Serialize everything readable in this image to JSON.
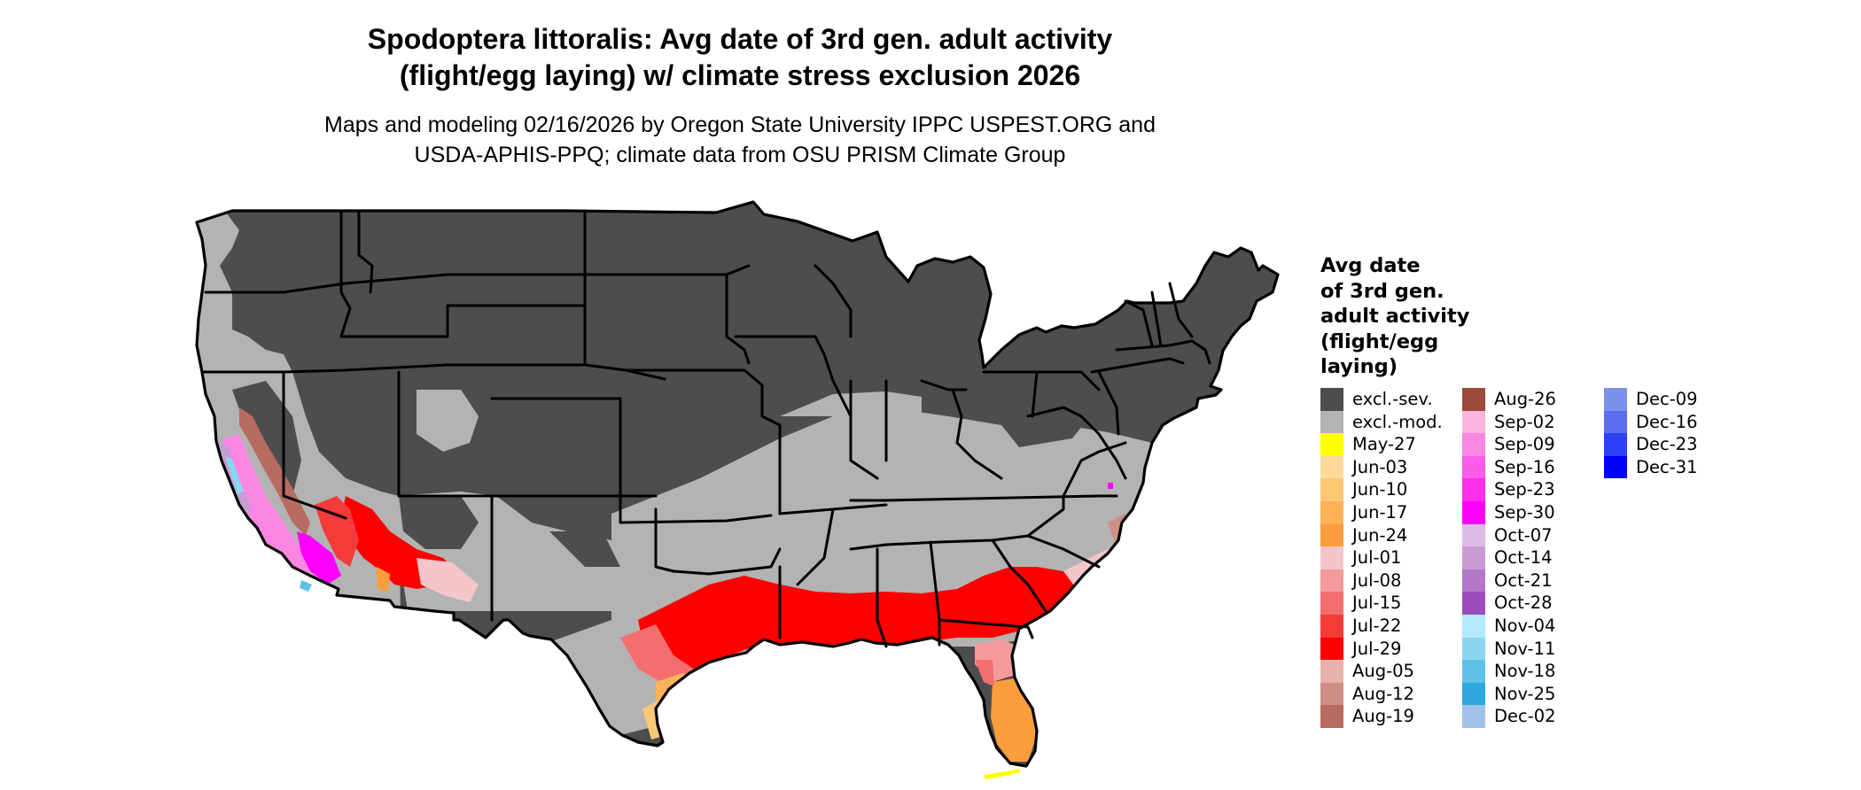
{
  "title": {
    "line1": "Spodoptera littoralis: Avg date of 3rd gen. adult activity",
    "line2": "(flight/egg laying) w/ climate stress exclusion 2026"
  },
  "subtitle": {
    "line1": "Maps and modeling 02/16/2026 by Oregon State University IPPC USPEST.ORG and",
    "line2": "USDA-APHIS-PPQ; climate data from OSU PRISM Climate Group"
  },
  "legend": {
    "title_lines": [
      "Avg date",
      "of 3rd gen.",
      "adult activity",
      "(flight/egg",
      "laying)"
    ],
    "columns": [
      [
        {
          "label": "excl.-sev.",
          "color": "#4d4d4d"
        },
        {
          "label": "excl.-mod.",
          "color": "#b3b3b3"
        },
        {
          "label": "May-27",
          "color": "#ffff00"
        },
        {
          "label": "Jun-03",
          "color": "#fdd99b"
        },
        {
          "label": "Jun-10",
          "color": "#fdc776"
        },
        {
          "label": "Jun-17",
          "color": "#fdb25a"
        },
        {
          "label": "Jun-24",
          "color": "#fb9d3c"
        },
        {
          "label": "Jul-01",
          "color": "#f5c6c9"
        },
        {
          "label": "Jul-08",
          "color": "#f39a9d"
        },
        {
          "label": "Jul-15",
          "color": "#f46e70"
        },
        {
          "label": "Jul-22",
          "color": "#f53a3a"
        },
        {
          "label": "Jul-29",
          "color": "#ff0000"
        },
        {
          "label": "Aug-05",
          "color": "#e8b1ab"
        },
        {
          "label": "Aug-12",
          "color": "#cf8e84"
        },
        {
          "label": "Aug-19",
          "color": "#b86b60"
        }
      ],
      [
        {
          "label": "Aug-26",
          "color": "#9c4a3a"
        },
        {
          "label": "Sep-02",
          "color": "#fbb4de"
        },
        {
          "label": "Sep-09",
          "color": "#fa86e3"
        },
        {
          "label": "Sep-16",
          "color": "#fa5de8"
        },
        {
          "label": "Sep-23",
          "color": "#fc2fed"
        },
        {
          "label": "Sep-30",
          "color": "#ff00ff"
        },
        {
          "label": "Oct-07",
          "color": "#ddbde8"
        },
        {
          "label": "Oct-14",
          "color": "#c89bd6"
        },
        {
          "label": "Oct-21",
          "color": "#b378c8"
        },
        {
          "label": "Oct-28",
          "color": "#9b4dbb"
        },
        {
          "label": "Nov-04",
          "color": "#b3e9fa"
        },
        {
          "label": "Nov-11",
          "color": "#8ad6ef"
        },
        {
          "label": "Nov-18",
          "color": "#5ec1e6"
        },
        {
          "label": "Nov-25",
          "color": "#2ea7dd"
        },
        {
          "label": "Dec-02",
          "color": "#a3c1e8"
        }
      ],
      [
        {
          "label": "Dec-09",
          "color": "#7a93ea"
        },
        {
          "label": "Dec-16",
          "color": "#5a6cef"
        },
        {
          "label": "Dec-23",
          "color": "#2f3ff5"
        },
        {
          "label": "Dec-31",
          "color": "#0000ff"
        }
      ]
    ]
  },
  "map": {
    "outline_color": "#000000",
    "severe_color": "#4d4d4d",
    "moderate_color": "#b3b3b3"
  }
}
